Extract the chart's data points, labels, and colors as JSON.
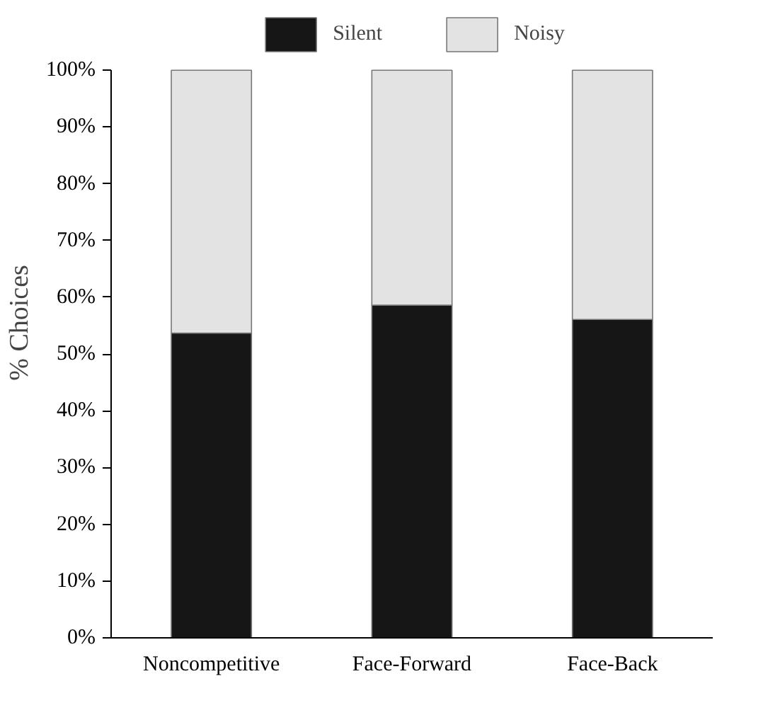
{
  "chart_data": {
    "type": "bar",
    "stacked": true,
    "ylabel": "% Choices",
    "categories": [
      "Noncompetitive",
      "Face-Forward",
      "Face-Back"
    ],
    "series": [
      {
        "name": "Silent",
        "color": "#161616",
        "values": [
          53.7,
          58.6,
          56.1
        ]
      },
      {
        "name": "Noisy",
        "color": "#e3e3e3",
        "values": [
          46.3,
          41.4,
          43.9
        ]
      }
    ],
    "ylim": [
      0,
      100
    ],
    "yticks": [
      {
        "value": 0,
        "label": "0%"
      },
      {
        "value": 10,
        "label": "10%"
      },
      {
        "value": 20,
        "label": "20%"
      },
      {
        "value": 30,
        "label": "30%"
      },
      {
        "value": 40,
        "label": "40%"
      },
      {
        "value": 50,
        "label": "50%"
      },
      {
        "value": 60,
        "label": "60%"
      },
      {
        "value": 70,
        "label": "70%"
      },
      {
        "value": 80,
        "label": "80%"
      },
      {
        "value": 90,
        "label": "90%"
      },
      {
        "value": 100,
        "label": "100%"
      }
    ],
    "legend": "top",
    "grid": false
  }
}
